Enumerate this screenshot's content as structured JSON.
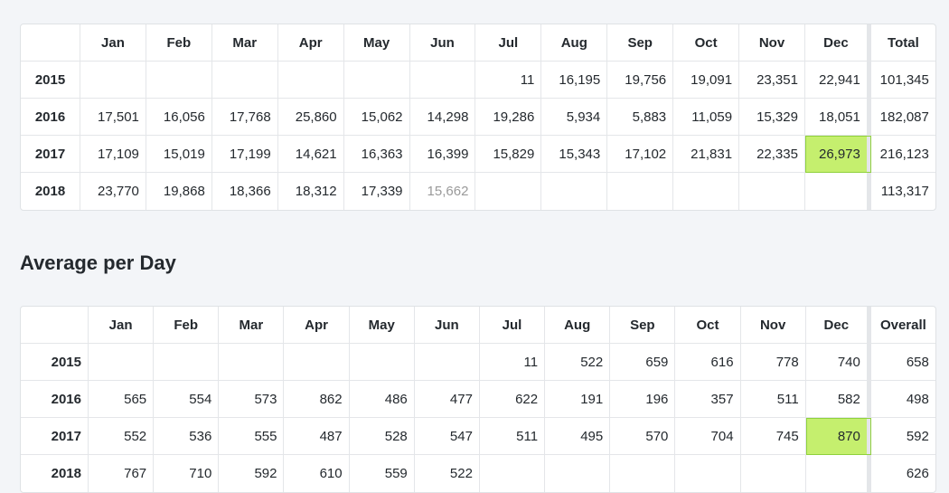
{
  "table1": {
    "header": [
      "Jan",
      "Feb",
      "Mar",
      "Apr",
      "May",
      "Jun",
      "Jul",
      "Aug",
      "Sep",
      "Oct",
      "Nov",
      "Dec",
      "Total"
    ],
    "rows": [
      {
        "label": "2015",
        "cells": [
          null,
          null,
          null,
          null,
          null,
          null,
          "11",
          "16,195",
          "19,756",
          "19,091",
          "23,351",
          "22,941",
          "101,345"
        ]
      },
      {
        "label": "2016",
        "cells": [
          "17,501",
          "16,056",
          "17,768",
          "25,860",
          "15,062",
          "14,298",
          "19,286",
          "5,934",
          "5,883",
          "11,059",
          "15,329",
          "18,051",
          "182,087"
        ]
      },
      {
        "label": "2017",
        "cells": [
          "17,109",
          "15,019",
          "17,199",
          "14,621",
          "16,363",
          "16,399",
          "15,829",
          "15,343",
          "17,102",
          "21,831",
          "22,335",
          "26,973",
          "216,123"
        ]
      },
      {
        "label": "2018",
        "cells": [
          "23,770",
          "19,868",
          "18,366",
          "18,312",
          "17,339",
          "15,662",
          null,
          null,
          null,
          null,
          null,
          null,
          "113,317"
        ]
      }
    ]
  },
  "heading": "Average per Day",
  "table2": {
    "header": [
      "Jan",
      "Feb",
      "Mar",
      "Apr",
      "May",
      "Jun",
      "Jul",
      "Aug",
      "Sep",
      "Oct",
      "Nov",
      "Dec",
      "Overall"
    ],
    "rows": [
      {
        "label": "2015",
        "cells": [
          null,
          null,
          null,
          null,
          null,
          null,
          "11",
          "522",
          "659",
          "616",
          "778",
          "740",
          "658"
        ]
      },
      {
        "label": "2016",
        "cells": [
          "565",
          "554",
          "573",
          "862",
          "486",
          "477",
          "622",
          "191",
          "196",
          "357",
          "511",
          "582",
          "498"
        ]
      },
      {
        "label": "2017",
        "cells": [
          "552",
          "536",
          "555",
          "487",
          "528",
          "547",
          "511",
          "495",
          "570",
          "704",
          "745",
          "870",
          "592"
        ]
      },
      {
        "label": "2018",
        "cells": [
          "767",
          "710",
          "592",
          "610",
          "559",
          "522",
          null,
          null,
          null,
          null,
          null,
          null,
          "626"
        ]
      }
    ]
  }
}
